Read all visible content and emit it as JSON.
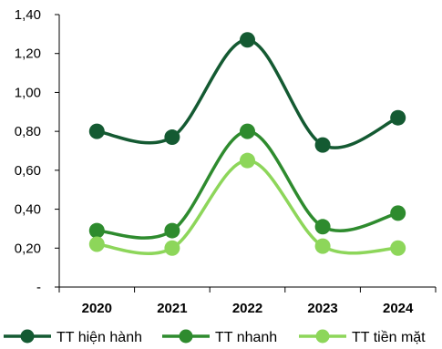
{
  "chart_data": {
    "type": "line",
    "categories": [
      "2020",
      "2021",
      "2022",
      "2023",
      "2024"
    ],
    "y_tick_labels": [
      "-",
      "0,20",
      "0,40",
      "0,60",
      "0,80",
      "1,00",
      "1,20",
      "1,40"
    ],
    "ylim": [
      0,
      1.4
    ],
    "y_step": 0.2,
    "grid": false,
    "legend_position": "bottom",
    "smooth": true,
    "series": [
      {
        "name": "TT hiện hành",
        "color": "#145A32",
        "values": [
          0.8,
          0.77,
          1.27,
          0.73,
          0.87
        ]
      },
      {
        "name": "TT nhanh",
        "color": "#2E8B2E",
        "values": [
          0.29,
          0.29,
          0.8,
          0.31,
          0.38
        ]
      },
      {
        "name": "TT tiền mặt",
        "color": "#8DD65A",
        "values": [
          0.22,
          0.2,
          0.65,
          0.21,
          0.2
        ]
      }
    ]
  }
}
